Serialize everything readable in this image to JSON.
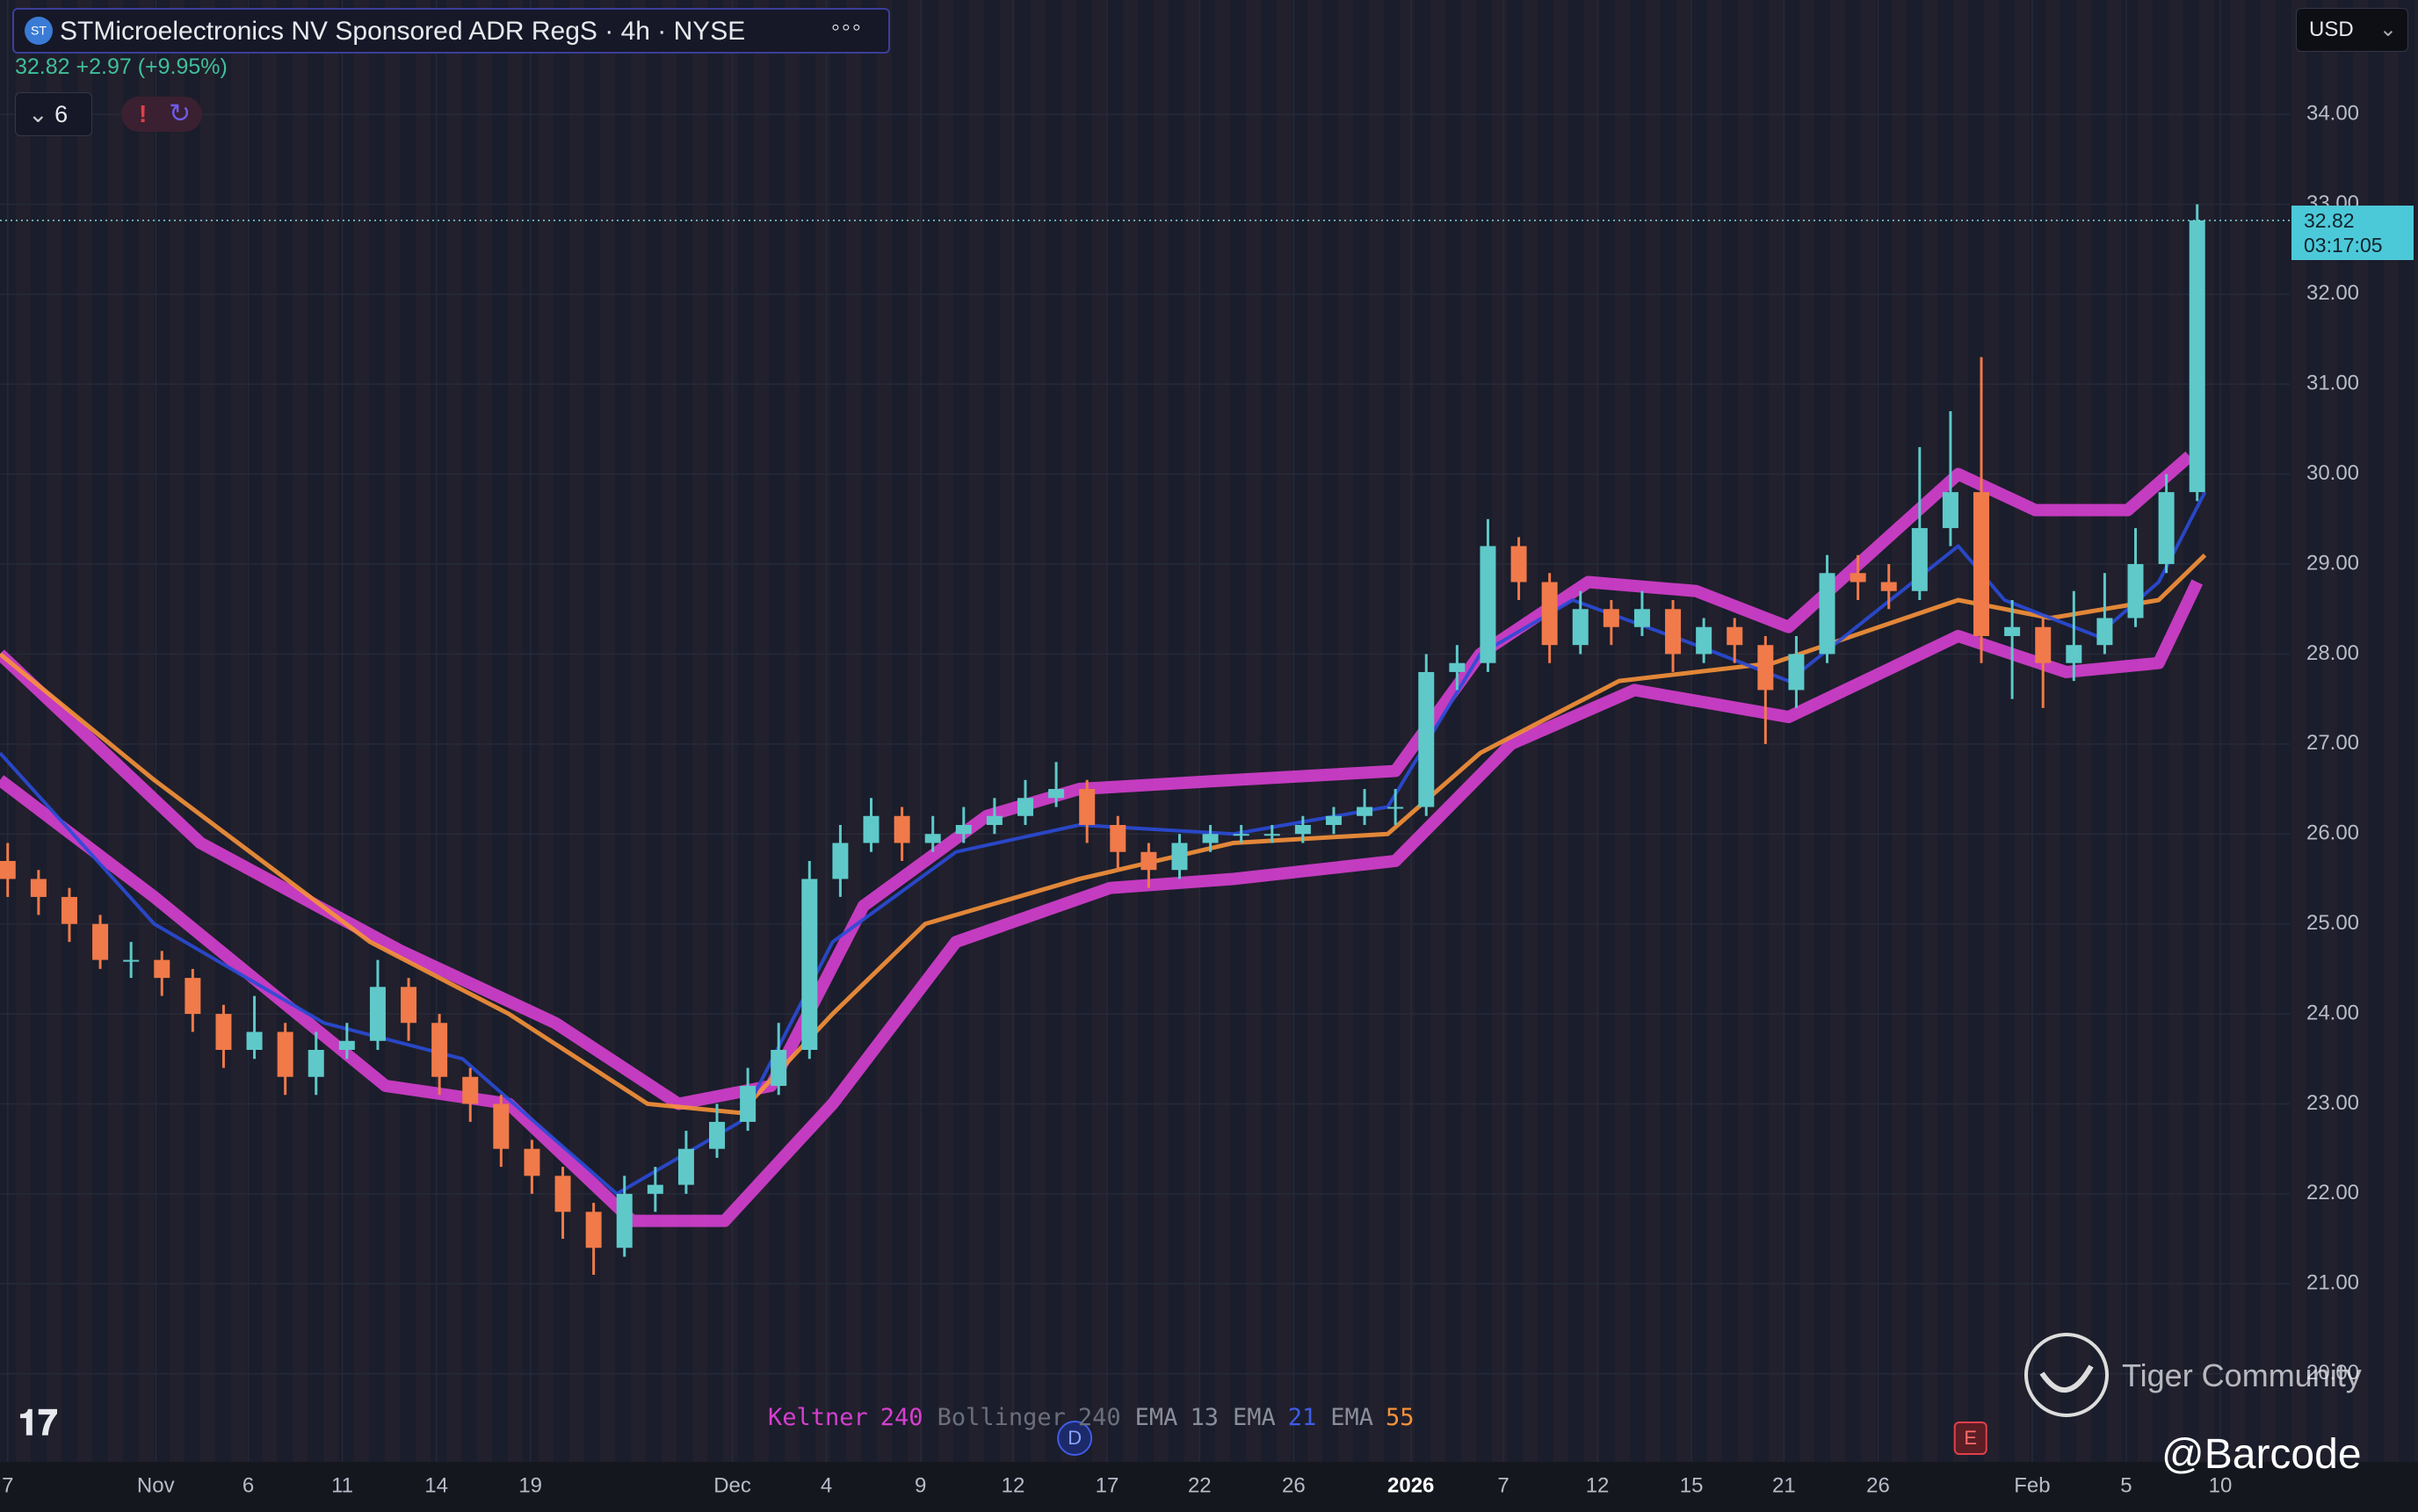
{
  "header": {
    "title": "STMicroelectronics NV Sponsored ADR RegS · 4h · NYSE",
    "change": "+2.97 (+9.95%)",
    "indicator_count": 6,
    "currency": "USD",
    "countdown": "03:17:05"
  },
  "chart_data": {
    "type": "candlestick",
    "x": [
      0,
      1,
      2,
      3,
      4,
      5,
      6,
      7,
      8,
      9,
      10,
      11,
      12,
      13,
      14,
      15,
      16,
      17,
      18,
      19,
      20,
      21,
      22,
      23,
      24,
      25,
      26,
      27,
      28,
      29,
      30,
      31,
      32,
      33,
      34,
      35,
      36,
      37,
      38,
      39,
      40,
      41,
      42,
      43,
      44,
      45,
      46,
      47,
      48,
      49,
      50,
      51,
      52,
      53,
      54,
      55,
      56,
      57,
      58,
      59,
      60,
      61,
      62,
      63,
      64,
      65,
      66,
      67,
      68,
      69,
      70,
      71
    ],
    "open": [
      25.7,
      25.5,
      25.3,
      25.0,
      24.6,
      24.6,
      24.4,
      24.0,
      23.6,
      23.8,
      23.3,
      23.6,
      23.7,
      24.3,
      23.9,
      23.3,
      23.0,
      22.5,
      22.2,
      21.8,
      21.4,
      22.0,
      22.1,
      22.5,
      22.8,
      23.2,
      23.6,
      25.5,
      25.9,
      26.2,
      25.9,
      26.0,
      26.1,
      26.2,
      26.4,
      26.5,
      26.1,
      25.8,
      25.6,
      25.9,
      26.0,
      26.0,
      26.0,
      26.1,
      26.2,
      26.3,
      26.3,
      27.8,
      27.9,
      29.2,
      28.8,
      28.1,
      28.5,
      28.3,
      28.5,
      28.0,
      28.3,
      28.1,
      27.6,
      28.0,
      28.9,
      28.8,
      28.7,
      29.4,
      29.8,
      28.2,
      28.3,
      27.9,
      28.1,
      28.4,
      29.0,
      29.8
    ],
    "high": [
      25.9,
      25.6,
      25.4,
      25.1,
      24.8,
      24.7,
      24.5,
      24.1,
      24.2,
      23.9,
      23.8,
      23.9,
      24.6,
      24.4,
      24.0,
      23.4,
      23.1,
      22.6,
      22.3,
      21.9,
      22.2,
      22.3,
      22.7,
      23.0,
      23.4,
      23.9,
      25.7,
      26.1,
      26.4,
      26.3,
      26.2,
      26.3,
      26.4,
      26.6,
      26.8,
      26.6,
      26.2,
      25.9,
      26.0,
      26.1,
      26.1,
      26.1,
      26.2,
      26.3,
      26.5,
      26.5,
      28.0,
      28.1,
      29.5,
      29.3,
      28.9,
      28.7,
      28.6,
      28.7,
      28.6,
      28.4,
      28.4,
      28.2,
      28.2,
      29.1,
      29.1,
      29.0,
      30.3,
      30.7,
      31.3,
      28.6,
      28.4,
      28.7,
      28.9,
      29.4,
      30.0,
      33.0
    ],
    "low": [
      25.3,
      25.1,
      24.8,
      24.5,
      24.4,
      24.2,
      23.8,
      23.4,
      23.5,
      23.1,
      23.1,
      23.5,
      23.6,
      23.7,
      23.1,
      22.8,
      22.3,
      22.0,
      21.5,
      21.1,
      21.3,
      21.8,
      22.0,
      22.4,
      22.7,
      23.1,
      23.5,
      25.3,
      25.8,
      25.7,
      25.8,
      25.9,
      26.0,
      26.1,
      26.3,
      25.9,
      25.6,
      25.4,
      25.5,
      25.8,
      25.9,
      25.9,
      25.9,
      26.0,
      26.1,
      26.1,
      26.2,
      27.6,
      27.8,
      28.6,
      27.9,
      28.0,
      28.1,
      28.2,
      27.8,
      27.9,
      27.9,
      27.0,
      27.4,
      27.9,
      28.6,
      28.5,
      28.6,
      29.2,
      27.9,
      27.5,
      27.4,
      27.7,
      28.0,
      28.3,
      28.9,
      29.7
    ],
    "close": [
      25.5,
      25.3,
      25.0,
      24.6,
      24.6,
      24.4,
      24.0,
      23.6,
      23.8,
      23.3,
      23.6,
      23.7,
      24.3,
      23.9,
      23.3,
      23.0,
      22.5,
      22.2,
      21.8,
      21.4,
      22.0,
      22.1,
      22.5,
      22.8,
      23.2,
      23.6,
      25.5,
      25.9,
      26.2,
      25.9,
      26.0,
      26.1,
      26.2,
      26.4,
      26.5,
      26.1,
      25.8,
      25.6,
      25.9,
      26.0,
      26.0,
      26.0,
      26.1,
      26.2,
      26.3,
      26.3,
      27.8,
      27.9,
      29.2,
      28.8,
      28.1,
      28.5,
      28.3,
      28.5,
      28.0,
      28.3,
      28.1,
      27.6,
      28.0,
      28.9,
      28.8,
      28.7,
      29.4,
      29.8,
      28.2,
      28.3,
      27.9,
      28.1,
      28.4,
      29.0,
      29.8,
      32.82
    ],
    "up_color": "#5fc9c9",
    "down_color": "#f07a4a",
    "last_price": 32.82,
    "lines": [
      {
        "color": "#d63fd0",
        "width": 14,
        "x": [
          -0.25,
          6.25,
          12.75,
          17.75,
          21.75,
          24.75,
          27.75,
          31.75,
          34.75,
          39.75,
          45,
          47.75,
          51.25,
          54.75,
          57.75,
          63.25,
          65.75,
          68.75,
          70.75
        ],
        "values": [
          28.0,
          25.9,
          24.7,
          23.9,
          23.0,
          23.2,
          25.2,
          26.2,
          26.5,
          26.6,
          26.7,
          28.0,
          28.8,
          28.7,
          28.3,
          30.0,
          29.6,
          29.6,
          30.2
        ]
      },
      {
        "color": "#d63fd0",
        "width": 14,
        "x": [
          -0.25,
          4.75,
          12.25,
          16.25,
          20.25,
          23.25,
          26.75,
          30.75,
          35.75,
          39.75,
          45,
          48.75,
          52.75,
          57.75,
          63.25,
          66.75,
          69.75,
          71
        ],
        "values": [
          26.6,
          25.3,
          23.2,
          23.0,
          21.7,
          21.7,
          23.0,
          24.8,
          25.4,
          25.5,
          25.7,
          27.0,
          27.6,
          27.3,
          28.2,
          27.8,
          27.9,
          28.8
        ]
      },
      {
        "color": "#f7923a",
        "width": 5,
        "x": [
          -0.25,
          4.75,
          11.75,
          16.25,
          20.75,
          23.75,
          26.75,
          29.75,
          34.75,
          39.75,
          44.75,
          47.75,
          52.25,
          57.25,
          63.25,
          66.25,
          69.75,
          71.25
        ],
        "values": [
          28.0,
          26.6,
          24.8,
          24.0,
          23.0,
          22.9,
          24.0,
          25.0,
          25.5,
          25.9,
          26.0,
          26.9,
          27.7,
          27.9,
          28.6,
          28.4,
          28.6,
          29.1
        ]
      },
      {
        "color": "#2a4bd7",
        "width": 4,
        "x": [
          -0.25,
          4.75,
          10.25,
          14.75,
          19.75,
          23.75,
          26.75,
          30.75,
          34.75,
          39.75,
          44.75,
          47.75,
          50.75,
          54.75,
          57.75,
          63.25,
          64.75,
          67.75,
          69.75,
          71.25
        ],
        "values": [
          26.9,
          25.0,
          23.9,
          23.5,
          22.0,
          22.8,
          24.8,
          25.8,
          26.1,
          26.0,
          26.3,
          28.0,
          28.6,
          28.1,
          27.7,
          29.2,
          28.6,
          28.2,
          28.8,
          29.8
        ]
      }
    ],
    "xlim": [
      -0.25,
      74
    ],
    "ylim": [
      19.02,
      35.27
    ],
    "yticks": [
      {
        "value": 20,
        "label": "20.00"
      },
      {
        "value": 21,
        "label": "21.00"
      },
      {
        "value": 22,
        "label": "22.00"
      },
      {
        "value": 23,
        "label": "23.00"
      },
      {
        "value": 24,
        "label": "24.00"
      },
      {
        "value": 25,
        "label": "25.00"
      },
      {
        "value": 26,
        "label": "26.00"
      },
      {
        "value": 27,
        "label": "27.00"
      },
      {
        "value": 28,
        "label": "28.00"
      },
      {
        "value": 29,
        "label": "29.00"
      },
      {
        "value": 30,
        "label": "30.00"
      },
      {
        "value": 31,
        "label": "31.00"
      },
      {
        "value": 32,
        "label": "32.00"
      },
      {
        "value": 33,
        "label": "33.00"
      },
      {
        "value": 34,
        "label": "34.00"
      }
    ],
    "xticks": [
      {
        "value": 0,
        "label": "7"
      },
      {
        "value": 4.8,
        "label": "Nov"
      },
      {
        "value": 7.8,
        "label": "6"
      },
      {
        "value": 10.85,
        "label": "11"
      },
      {
        "value": 13.9,
        "label": "14"
      },
      {
        "value": 16.95,
        "label": "19"
      },
      {
        "value": 23.5,
        "label": "Dec"
      },
      {
        "value": 26.55,
        "label": "4"
      },
      {
        "value": 29.6,
        "label": "9"
      },
      {
        "value": 32.6,
        "label": "12"
      },
      {
        "value": 35.65,
        "label": "17"
      },
      {
        "value": 38.65,
        "label": "22"
      },
      {
        "value": 41.7,
        "label": "26"
      },
      {
        "value": 45.5,
        "label": "2026"
      },
      {
        "value": 48.5,
        "label": "7"
      },
      {
        "value": 51.55,
        "label": "12"
      },
      {
        "value": 54.6,
        "label": "15"
      },
      {
        "value": 57.6,
        "label": "21"
      },
      {
        "value": 60.65,
        "label": "26"
      },
      {
        "value": 65.65,
        "label": "Feb"
      },
      {
        "value": 68.7,
        "label": "5"
      },
      {
        "value": 71.75,
        "label": "10"
      }
    ],
    "grid": true,
    "legend": [
      {
        "name": "Keltner",
        "param": 240,
        "name_color": "#d63fd0",
        "param_color": "#d63fd0"
      },
      {
        "name": "Bollinger",
        "param": 240,
        "name_color": "#6b6f7c",
        "param_color": "#6b6f7c"
      },
      {
        "name": "EMA",
        "param": 13,
        "name_color": "#8a8e9a",
        "param_color": "#8a8e9a"
      },
      {
        "name": "EMA",
        "param": 21,
        "name_color": "#8a8e9a",
        "param_color": "#3f5ce8"
      },
      {
        "name": "EMA",
        "param": 55,
        "name_color": "#8a8e9a",
        "param_color": "#f7923a"
      }
    ],
    "markers": [
      {
        "label": "D",
        "x": 34.6
      },
      {
        "label": "E",
        "x": 63.65
      }
    ]
  },
  "watermark": {
    "community": "Tiger Community",
    "handle": "@Barcode"
  }
}
